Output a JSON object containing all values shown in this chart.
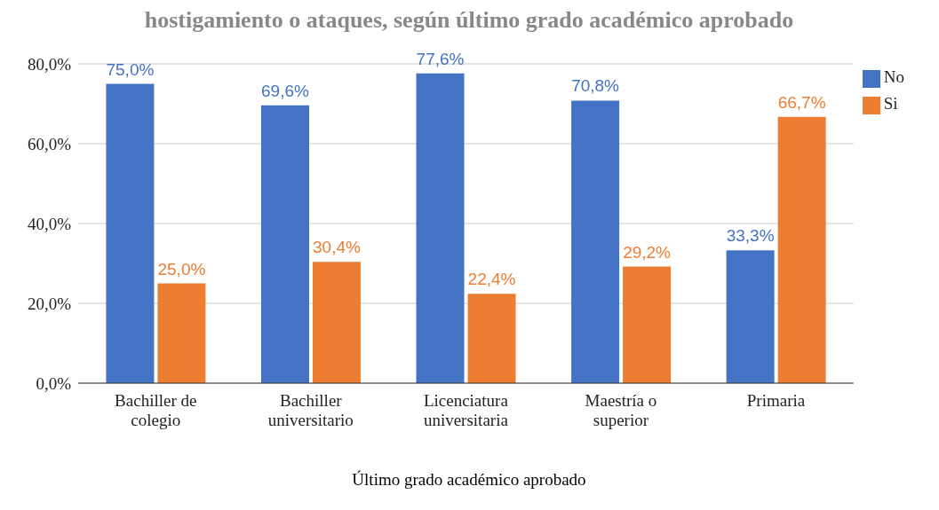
{
  "chart_data": {
    "type": "bar",
    "title": "hostigamiento o ataques, según último grado académico aprobado",
    "xlabel": "Último grado académico aprobado",
    "categories": [
      "Bachiller de colegio",
      "Bachiller universitario",
      "Licenciatura universitaria",
      "Maestría o superior",
      "Primaria"
    ],
    "series": [
      {
        "name": "No",
        "color": "#4472c4",
        "values": [
          75.0,
          69.6,
          77.6,
          70.8,
          33.3
        ],
        "value_labels": [
          "75,0%",
          "69,6%",
          "77,6%",
          "70,8%",
          "33,3%"
        ]
      },
      {
        "name": "Si",
        "color": "#ed7d31",
        "values": [
          25.0,
          30.4,
          22.4,
          29.2,
          66.7
        ],
        "value_labels": [
          "25,0%",
          "30,4%",
          "22,4%",
          "29,2%",
          "66,7%"
        ]
      }
    ],
    "ylim": [
      0,
      80
    ],
    "yticks": [
      {
        "value": 0,
        "label": "0,0%"
      },
      {
        "value": 20,
        "label": "20,0%"
      },
      {
        "value": 40,
        "label": "40,0%"
      },
      {
        "value": 60,
        "label": "60,0%"
      },
      {
        "value": 80,
        "label": "80,0%"
      }
    ],
    "grid": "y",
    "legend": "top right"
  }
}
